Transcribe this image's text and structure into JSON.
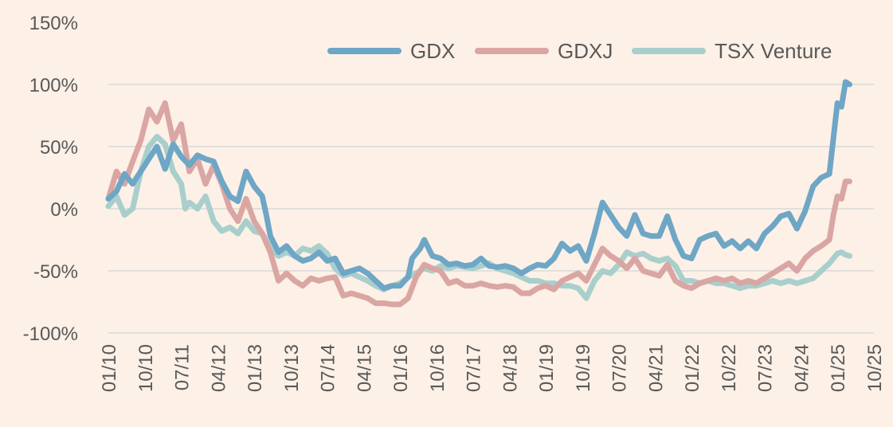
{
  "chart_data": {
    "type": "line",
    "title": "",
    "xlabel": "",
    "ylabel": "",
    "ylim": [
      -100,
      150
    ],
    "yticks": [
      150,
      100,
      50,
      0,
      -50,
      -100
    ],
    "ytick_labels": [
      "150%",
      "100%",
      "50%",
      "0%",
      "-50%",
      "-100%"
    ],
    "xlim": [
      0,
      189
    ],
    "xtick_positions": [
      0,
      9,
      18,
      27,
      36,
      45,
      54,
      63,
      72,
      81,
      90,
      99,
      108,
      117,
      126,
      135,
      144,
      153,
      162,
      171,
      180,
      189
    ],
    "xtick_labels": [
      "01/10",
      "10/10",
      "07/11",
      "04/12",
      "01/13",
      "10/13",
      "07/14",
      "04/15",
      "01/16",
      "10/16",
      "07/17",
      "04/18",
      "01/19",
      "10/19",
      "07/20",
      "04/21",
      "01/22",
      "10/22",
      "07/23",
      "04/24",
      "01/25",
      "10/25"
    ],
    "grid": true,
    "legend_position": "top-right",
    "series": [
      {
        "name": "GDX",
        "color": "#6ea6c6",
        "points": [
          [
            0,
            8
          ],
          [
            2,
            14
          ],
          [
            4,
            28
          ],
          [
            6,
            20
          ],
          [
            8,
            30
          ],
          [
            10,
            40
          ],
          [
            12,
            50
          ],
          [
            14,
            32
          ],
          [
            16,
            52
          ],
          [
            18,
            42
          ],
          [
            20,
            35
          ],
          [
            22,
            43
          ],
          [
            24,
            40
          ],
          [
            26,
            38
          ],
          [
            28,
            22
          ],
          [
            30,
            10
          ],
          [
            32,
            6
          ],
          [
            34,
            30
          ],
          [
            36,
            18
          ],
          [
            38,
            10
          ],
          [
            39,
            -5
          ],
          [
            40,
            -22
          ],
          [
            42,
            -35
          ],
          [
            44,
            -30
          ],
          [
            46,
            -38
          ],
          [
            48,
            -42
          ],
          [
            50,
            -40
          ],
          [
            52,
            -35
          ],
          [
            54,
            -42
          ],
          [
            56,
            -40
          ],
          [
            58,
            -52
          ],
          [
            60,
            -50
          ],
          [
            62,
            -48
          ],
          [
            64,
            -52
          ],
          [
            66,
            -58
          ],
          [
            68,
            -64
          ],
          [
            70,
            -62
          ],
          [
            72,
            -62
          ],
          [
            74,
            -55
          ],
          [
            75,
            -40
          ],
          [
            77,
            -32
          ],
          [
            78,
            -25
          ],
          [
            80,
            -38
          ],
          [
            82,
            -40
          ],
          [
            84,
            -45
          ],
          [
            86,
            -44
          ],
          [
            88,
            -46
          ],
          [
            90,
            -45
          ],
          [
            92,
            -40
          ],
          [
            94,
            -46
          ],
          [
            96,
            -47
          ],
          [
            98,
            -46
          ],
          [
            100,
            -48
          ],
          [
            102,
            -52
          ],
          [
            104,
            -48
          ],
          [
            106,
            -45
          ],
          [
            108,
            -46
          ],
          [
            110,
            -40
          ],
          [
            112,
            -28
          ],
          [
            114,
            -34
          ],
          [
            116,
            -30
          ],
          [
            118,
            -42
          ],
          [
            120,
            -20
          ],
          [
            122,
            5
          ],
          [
            124,
            -5
          ],
          [
            126,
            -15
          ],
          [
            128,
            -22
          ],
          [
            130,
            -5
          ],
          [
            132,
            -20
          ],
          [
            134,
            -22
          ],
          [
            136,
            -22
          ],
          [
            138,
            -6
          ],
          [
            140,
            -25
          ],
          [
            142,
            -38
          ],
          [
            144,
            -40
          ],
          [
            146,
            -25
          ],
          [
            148,
            -22
          ],
          [
            150,
            -20
          ],
          [
            152,
            -30
          ],
          [
            154,
            -26
          ],
          [
            156,
            -32
          ],
          [
            158,
            -26
          ],
          [
            160,
            -32
          ],
          [
            162,
            -20
          ],
          [
            164,
            -14
          ],
          [
            166,
            -6
          ],
          [
            168,
            -4
          ],
          [
            170,
            -16
          ],
          [
            172,
            -2
          ],
          [
            174,
            18
          ],
          [
            176,
            25
          ],
          [
            178,
            28
          ],
          [
            180,
            85
          ],
          [
            181,
            82
          ],
          [
            182,
            102
          ],
          [
            183,
            100
          ]
        ]
      },
      {
        "name": "GDXJ",
        "color": "#d9a6a3",
        "points": [
          [
            0,
            8
          ],
          [
            2,
            30
          ],
          [
            4,
            20
          ],
          [
            6,
            38
          ],
          [
            8,
            55
          ],
          [
            10,
            80
          ],
          [
            12,
            70
          ],
          [
            14,
            85
          ],
          [
            16,
            55
          ],
          [
            18,
            68
          ],
          [
            20,
            30
          ],
          [
            22,
            40
          ],
          [
            24,
            20
          ],
          [
            26,
            35
          ],
          [
            28,
            20
          ],
          [
            30,
            0
          ],
          [
            32,
            -10
          ],
          [
            34,
            8
          ],
          [
            36,
            -10
          ],
          [
            38,
            -20
          ],
          [
            40,
            -35
          ],
          [
            42,
            -58
          ],
          [
            44,
            -52
          ],
          [
            46,
            -58
          ],
          [
            48,
            -62
          ],
          [
            50,
            -56
          ],
          [
            52,
            -58
          ],
          [
            54,
            -56
          ],
          [
            56,
            -55
          ],
          [
            58,
            -70
          ],
          [
            60,
            -68
          ],
          [
            62,
            -70
          ],
          [
            64,
            -72
          ],
          [
            66,
            -76
          ],
          [
            68,
            -76
          ],
          [
            70,
            -77
          ],
          [
            72,
            -77
          ],
          [
            74,
            -72
          ],
          [
            76,
            -55
          ],
          [
            78,
            -45
          ],
          [
            80,
            -48
          ],
          [
            82,
            -50
          ],
          [
            84,
            -60
          ],
          [
            86,
            -58
          ],
          [
            88,
            -62
          ],
          [
            90,
            -62
          ],
          [
            92,
            -60
          ],
          [
            94,
            -62
          ],
          [
            96,
            -63
          ],
          [
            98,
            -62
          ],
          [
            100,
            -63
          ],
          [
            102,
            -68
          ],
          [
            104,
            -68
          ],
          [
            106,
            -64
          ],
          [
            108,
            -62
          ],
          [
            110,
            -65
          ],
          [
            112,
            -58
          ],
          [
            114,
            -55
          ],
          [
            116,
            -52
          ],
          [
            118,
            -58
          ],
          [
            120,
            -45
          ],
          [
            122,
            -32
          ],
          [
            124,
            -38
          ],
          [
            126,
            -42
          ],
          [
            128,
            -48
          ],
          [
            130,
            -40
          ],
          [
            132,
            -50
          ],
          [
            134,
            -52
          ],
          [
            136,
            -54
          ],
          [
            138,
            -45
          ],
          [
            140,
            -58
          ],
          [
            142,
            -62
          ],
          [
            144,
            -64
          ],
          [
            146,
            -60
          ],
          [
            148,
            -58
          ],
          [
            150,
            -56
          ],
          [
            152,
            -58
          ],
          [
            154,
            -56
          ],
          [
            156,
            -60
          ],
          [
            158,
            -58
          ],
          [
            160,
            -60
          ],
          [
            162,
            -56
          ],
          [
            164,
            -52
          ],
          [
            166,
            -48
          ],
          [
            168,
            -44
          ],
          [
            170,
            -50
          ],
          [
            172,
            -40
          ],
          [
            174,
            -34
          ],
          [
            176,
            -30
          ],
          [
            178,
            -25
          ],
          [
            179,
            -5
          ],
          [
            180,
            10
          ],
          [
            181,
            8
          ],
          [
            182,
            22
          ],
          [
            183,
            22
          ]
        ]
      },
      {
        "name": "TSX Venture",
        "color": "#a8cfcc",
        "points": [
          [
            0,
            2
          ],
          [
            2,
            10
          ],
          [
            4,
            -5
          ],
          [
            6,
            0
          ],
          [
            8,
            30
          ],
          [
            10,
            50
          ],
          [
            12,
            58
          ],
          [
            14,
            52
          ],
          [
            16,
            30
          ],
          [
            18,
            20
          ],
          [
            19,
            0
          ],
          [
            20,
            5
          ],
          [
            22,
            0
          ],
          [
            24,
            10
          ],
          [
            26,
            -10
          ],
          [
            28,
            -18
          ],
          [
            30,
            -15
          ],
          [
            32,
            -20
          ],
          [
            34,
            -10
          ],
          [
            36,
            -18
          ],
          [
            38,
            -20
          ],
          [
            40,
            -32
          ],
          [
            42,
            -38
          ],
          [
            44,
            -35
          ],
          [
            46,
            -38
          ],
          [
            48,
            -32
          ],
          [
            50,
            -34
          ],
          [
            52,
            -30
          ],
          [
            54,
            -36
          ],
          [
            56,
            -48
          ],
          [
            58,
            -54
          ],
          [
            60,
            -52
          ],
          [
            62,
            -55
          ],
          [
            64,
            -58
          ],
          [
            66,
            -62
          ],
          [
            68,
            -65
          ],
          [
            70,
            -62
          ],
          [
            72,
            -60
          ],
          [
            74,
            -55
          ],
          [
            76,
            -52
          ],
          [
            78,
            -48
          ],
          [
            80,
            -50
          ],
          [
            82,
            -46
          ],
          [
            84,
            -48
          ],
          [
            86,
            -46
          ],
          [
            88,
            -47
          ],
          [
            90,
            -48
          ],
          [
            92,
            -46
          ],
          [
            94,
            -44
          ],
          [
            96,
            -48
          ],
          [
            98,
            -50
          ],
          [
            100,
            -52
          ],
          [
            102,
            -55
          ],
          [
            104,
            -58
          ],
          [
            106,
            -58
          ],
          [
            108,
            -60
          ],
          [
            110,
            -60
          ],
          [
            112,
            -62
          ],
          [
            114,
            -62
          ],
          [
            116,
            -64
          ],
          [
            118,
            -72
          ],
          [
            120,
            -58
          ],
          [
            122,
            -50
          ],
          [
            124,
            -52
          ],
          [
            126,
            -45
          ],
          [
            128,
            -35
          ],
          [
            130,
            -38
          ],
          [
            132,
            -36
          ],
          [
            134,
            -40
          ],
          [
            136,
            -42
          ],
          [
            138,
            -40
          ],
          [
            140,
            -46
          ],
          [
            142,
            -58
          ],
          [
            144,
            -58
          ],
          [
            146,
            -60
          ],
          [
            148,
            -58
          ],
          [
            150,
            -60
          ],
          [
            152,
            -60
          ],
          [
            154,
            -62
          ],
          [
            156,
            -64
          ],
          [
            158,
            -62
          ],
          [
            160,
            -62
          ],
          [
            162,
            -60
          ],
          [
            164,
            -58
          ],
          [
            166,
            -60
          ],
          [
            168,
            -58
          ],
          [
            170,
            -60
          ],
          [
            172,
            -58
          ],
          [
            174,
            -56
          ],
          [
            176,
            -50
          ],
          [
            178,
            -44
          ],
          [
            180,
            -36
          ],
          [
            181,
            -35
          ],
          [
            182,
            -37
          ],
          [
            183,
            -38
          ]
        ]
      }
    ]
  }
}
